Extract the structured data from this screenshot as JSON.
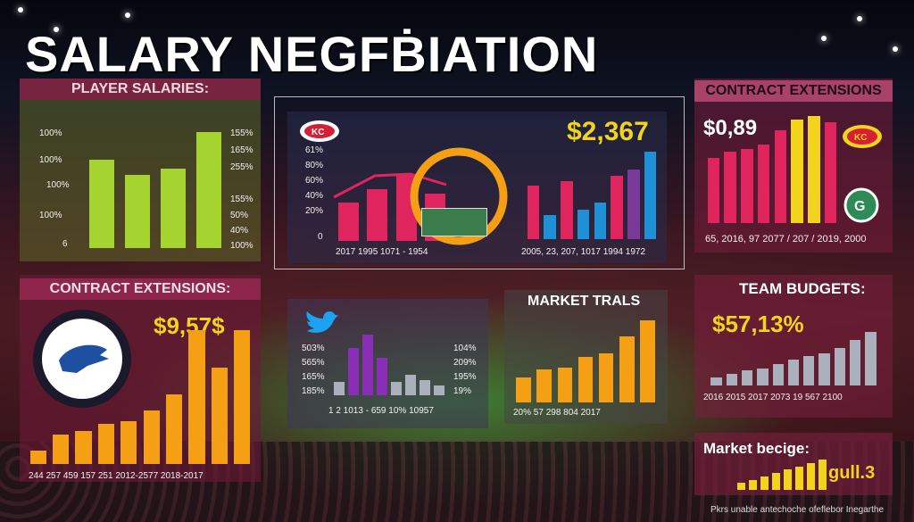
{
  "title": "SALARY NEGFḂIATION",
  "panels": {
    "player_salaries": {
      "header": "PLAYER SALARIES:",
      "left_labels": [
        "100%",
        "100%",
        "100%",
        "100%",
        "6"
      ],
      "right_labels": [
        "155%",
        "165%",
        "255%",
        "155%",
        "50%",
        "40%",
        "100%"
      ]
    },
    "center_top": {
      "big_value": "$2,367",
      "left_labels": [
        "61%",
        "80%",
        "60%",
        "40%",
        "20%",
        "0"
      ],
      "x_labels_left": "2017   1995   1071 - 1954",
      "x_labels_right": "2005, 23, 207, 1017   1994   1972"
    },
    "contract_top": {
      "header": "CONTRACT EXTENSIONS",
      "big_value": "$0,89",
      "x_labels": "65, 2016, 97   2077 / 207 / 2019, 2000"
    },
    "contract_left": {
      "header": "CONTRACT EXTENSIONS:",
      "big_value": "$9,57$",
      "x_labels": "244   257   459   157   251   2012-2577   2018-2017"
    },
    "center_bottom": {
      "left_labels": [
        "503%",
        "565%",
        "165%",
        "185%"
      ],
      "right_labels": [
        "104%",
        "209%",
        "195%",
        "19%"
      ],
      "x_labels": "1 2  1013 - 659   10%   10957"
    },
    "market_trails": {
      "header": "MARKET TRALS",
      "x_labels": "20%   57   298   804   2017"
    },
    "team_budgets": {
      "header": "TEAM BUDGETS:",
      "big_value": "$57,13%",
      "x_labels": "2016  2015  2017  2073  19 567  2100"
    },
    "market_bridge": {
      "header": "Market becige:",
      "big_value": "gull.3"
    }
  },
  "footer": "Pkrs unable antechoche ofeflebor Inegarthe",
  "chart_data": [
    {
      "type": "bar",
      "title": "PLAYER SALARIES:",
      "values": [
        72,
        60,
        65,
        95
      ],
      "colors": [
        "#a5d431"
      ]
    },
    {
      "type": "bar",
      "title": "",
      "values": [
        45,
        60,
        78,
        55
      ],
      "colors": [
        "#e0245e"
      ]
    },
    {
      "type": "bar",
      "title": "$2,367",
      "values": [
        55,
        25,
        60,
        30,
        38,
        65,
        72,
        90
      ],
      "colors": [
        "#e0245e",
        "#1e90d6",
        "#e0245e",
        "#1e90d6",
        "#1e90d6",
        "#e0245e",
        "#7a3a9a",
        "#1e90d6"
      ]
    },
    {
      "type": "bar",
      "title": "CONTRACT EXTENSIONS",
      "values": [
        60,
        65,
        68,
        72,
        85,
        95,
        98,
        92
      ],
      "colors": [
        "#e0245e",
        "#e0245e",
        "#e0245e",
        "#e0245e",
        "#e0245e",
        "#f2d41c",
        "#f2d41c",
        "#e0245e"
      ]
    },
    {
      "type": "bar",
      "title": "CONTRACT EXTENSIONS:",
      "values": [
        10,
        22,
        25,
        30,
        32,
        40,
        52,
        100,
        72,
        100
      ],
      "colors": [
        "#f5a014"
      ]
    },
    {
      "type": "bar",
      "title": "",
      "values": [
        20,
        70,
        90,
        55,
        20,
        30,
        22,
        15
      ],
      "colors": [
        "#aab0bc",
        "#8a2fb5",
        "#8a2fb5",
        "#8a2fb5",
        "#aab0bc",
        "#aab0bc",
        "#aab0bc",
        "#aab0bc"
      ]
    },
    {
      "type": "bar",
      "title": "MARKET TRALS",
      "values": [
        30,
        40,
        42,
        55,
        60,
        80,
        100
      ],
      "colors": [
        "#f5a014"
      ]
    },
    {
      "type": "bar",
      "title": "TEAM BUDGETS:",
      "values": [
        15,
        22,
        28,
        32,
        40,
        48,
        55,
        60,
        70,
        85,
        100
      ],
      "colors": [
        "#aab0bc"
      ]
    },
    {
      "type": "bar",
      "title": "Market becige:",
      "values": [
        20,
        30,
        40,
        50,
        60,
        70,
        80,
        90
      ],
      "colors": [
        "#f2d41c"
      ]
    }
  ]
}
